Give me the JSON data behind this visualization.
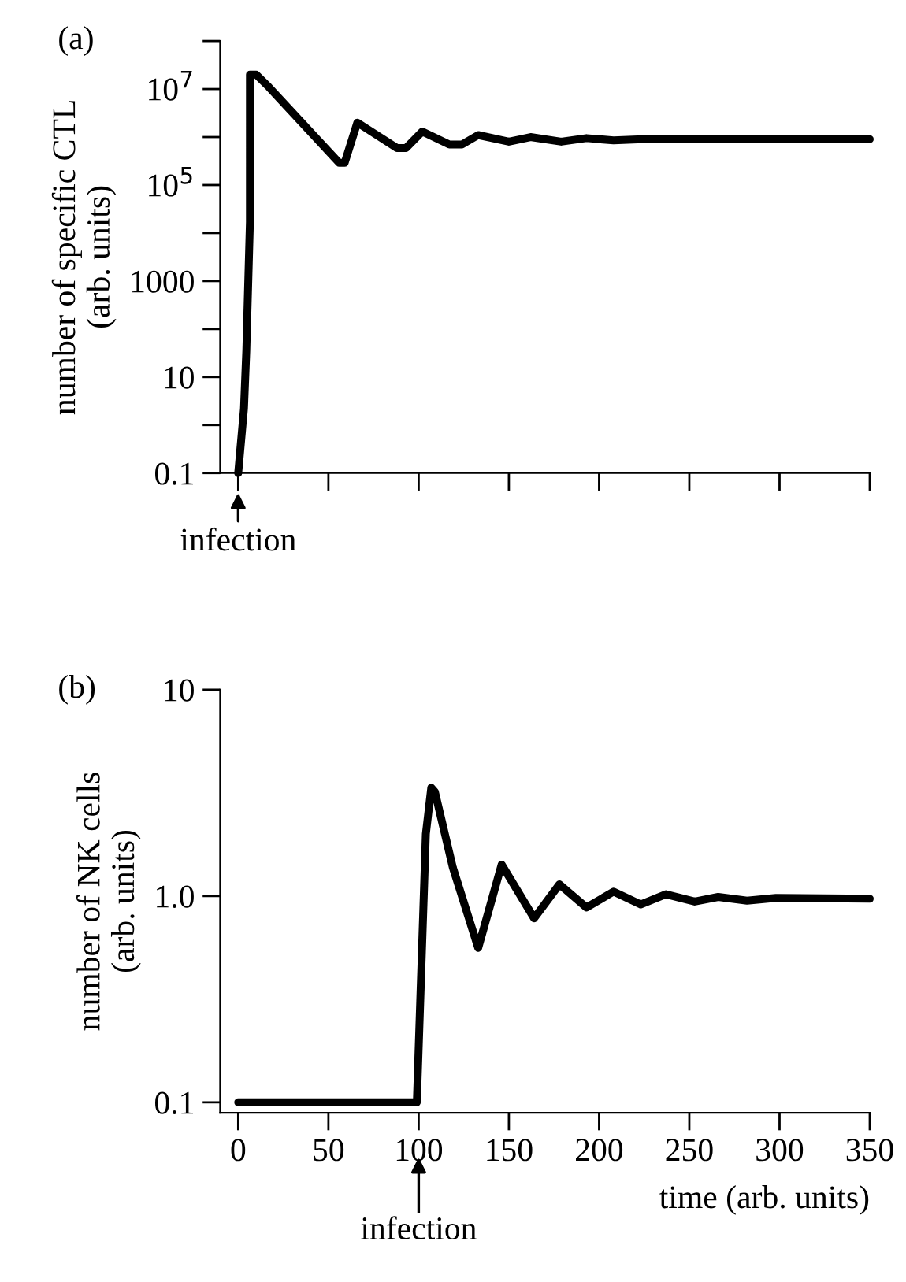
{
  "chart_data": [
    {
      "type": "line",
      "ylabel": "number of specific CTL\n(arb. units)",
      "annotations": [
        "(a)",
        {
          "text": "infection",
          "x": 0,
          "y": 0.1
        }
      ],
      "log": "y",
      "tick_labels": "y",
      "grid": false,
      "line_style": "solid",
      "marker": "none",
      "xlim": [
        -10,
        350
      ],
      "xticks": [
        {
          "value": 0,
          "label": null
        },
        {
          "value": 50,
          "label": null
        },
        {
          "value": 100,
          "label": null
        },
        {
          "value": 150,
          "label": null
        },
        {
          "value": 200,
          "label": null
        },
        {
          "value": 250,
          "label": null
        },
        {
          "value": 300,
          "label": null
        },
        {
          "value": 350,
          "label": null
        }
      ],
      "ylim": [
        0.1,
        100000000
      ],
      "yticks": [
        0.1,
        {
          "value": 1,
          "label": null
        },
        10,
        {
          "value": 100,
          "label": null
        },
        1000,
        {
          "value": 10000,
          "label": null
        },
        {
          "value": 100000,
          "label": "10$^{5}$"
        },
        {
          "value": 1000000,
          "label": null
        },
        {
          "value": 10000000,
          "label": "10$^{7}$"
        },
        {
          "value": 100000000,
          "label": null
        }
      ],
      "series": [
        {
          "color": "#000000",
          "x": [
            0,
            3.2,
            4.5,
            6.5,
            6.5,
            10,
            17,
            56,
            59,
            66,
            88,
            93,
            102,
            117,
            124,
            133,
            150,
            162,
            179,
            193,
            208,
            224,
            350
          ],
          "values": [
            0.1,
            2.2,
            36,
            17000,
            20000000,
            20000000,
            11000000,
            290000,
            290000,
            2000000,
            590000,
            590000,
            1300000,
            700000,
            700000,
            1100000,
            800000,
            1000000,
            800000,
            950000,
            850000,
            900000,
            900000
          ]
        }
      ]
    },
    {
      "type": "line",
      "xlabel": "time (arb. units)",
      "ylabel": "number of NK cells\n(arb. units)",
      "annotations": [
        "(b)",
        "infection"
      ],
      "log": "y",
      "grid": false,
      "line_style": "solid",
      "marker": "none",
      "xlim": [
        -10,
        350
      ],
      "xticks": [
        0,
        50,
        100,
        150,
        200,
        250,
        300,
        350
      ],
      "ylim": [
        0.089,
        10
      ],
      "yticks": [
        0.1,
        {
          "value": 1,
          "label": "1.0"
        },
        10
      ],
      "series": [
        {
          "color": "#000000",
          "x": [
            0,
            99,
            104,
            107,
            109,
            119,
            133,
            146,
            164,
            178,
            193,
            208,
            223,
            237,
            253,
            266,
            282,
            298,
            350
          ],
          "values": [
            0.1,
            0.1,
            2.0,
            3.35,
            3.2,
            1.37,
            0.56,
            1.42,
            0.78,
            1.14,
            0.88,
            1.05,
            0.91,
            1.02,
            0.94,
            0.99,
            0.95,
            0.98,
            0.97
          ]
        }
      ]
    }
  ]
}
